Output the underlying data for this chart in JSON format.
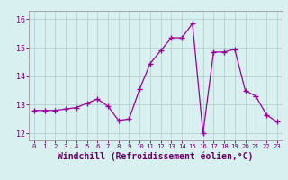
{
  "x": [
    0,
    1,
    2,
    3,
    4,
    5,
    6,
    7,
    8,
    9,
    10,
    11,
    12,
    13,
    14,
    15,
    16,
    17,
    18,
    19,
    20,
    21,
    22,
    23
  ],
  "y": [
    12.8,
    12.8,
    12.8,
    12.85,
    12.9,
    13.05,
    13.2,
    12.95,
    12.45,
    12.5,
    13.55,
    14.45,
    14.9,
    15.35,
    15.35,
    15.85,
    12.0,
    14.85,
    14.85,
    14.95,
    13.5,
    13.3,
    12.65,
    12.4
  ],
  "line_color": "#990099",
  "marker": "+",
  "marker_size": 4,
  "bg_color": "#d8f0f0",
  "grid_color": "#b8d4d4",
  "xlabel": "Windchill (Refroidissement éolien,°C)",
  "ylim": [
    11.75,
    16.3
  ],
  "xlim": [
    -0.5,
    23.5
  ],
  "yticks": [
    12,
    13,
    14,
    15,
    16
  ],
  "xticks": [
    0,
    1,
    2,
    3,
    4,
    5,
    6,
    7,
    8,
    9,
    10,
    11,
    12,
    13,
    14,
    15,
    16,
    17,
    18,
    19,
    20,
    21,
    22,
    23
  ],
  "axis_fontsize": 6.5,
  "tick_fontsize": 6.0,
  "xlabel_fontsize": 7.0
}
